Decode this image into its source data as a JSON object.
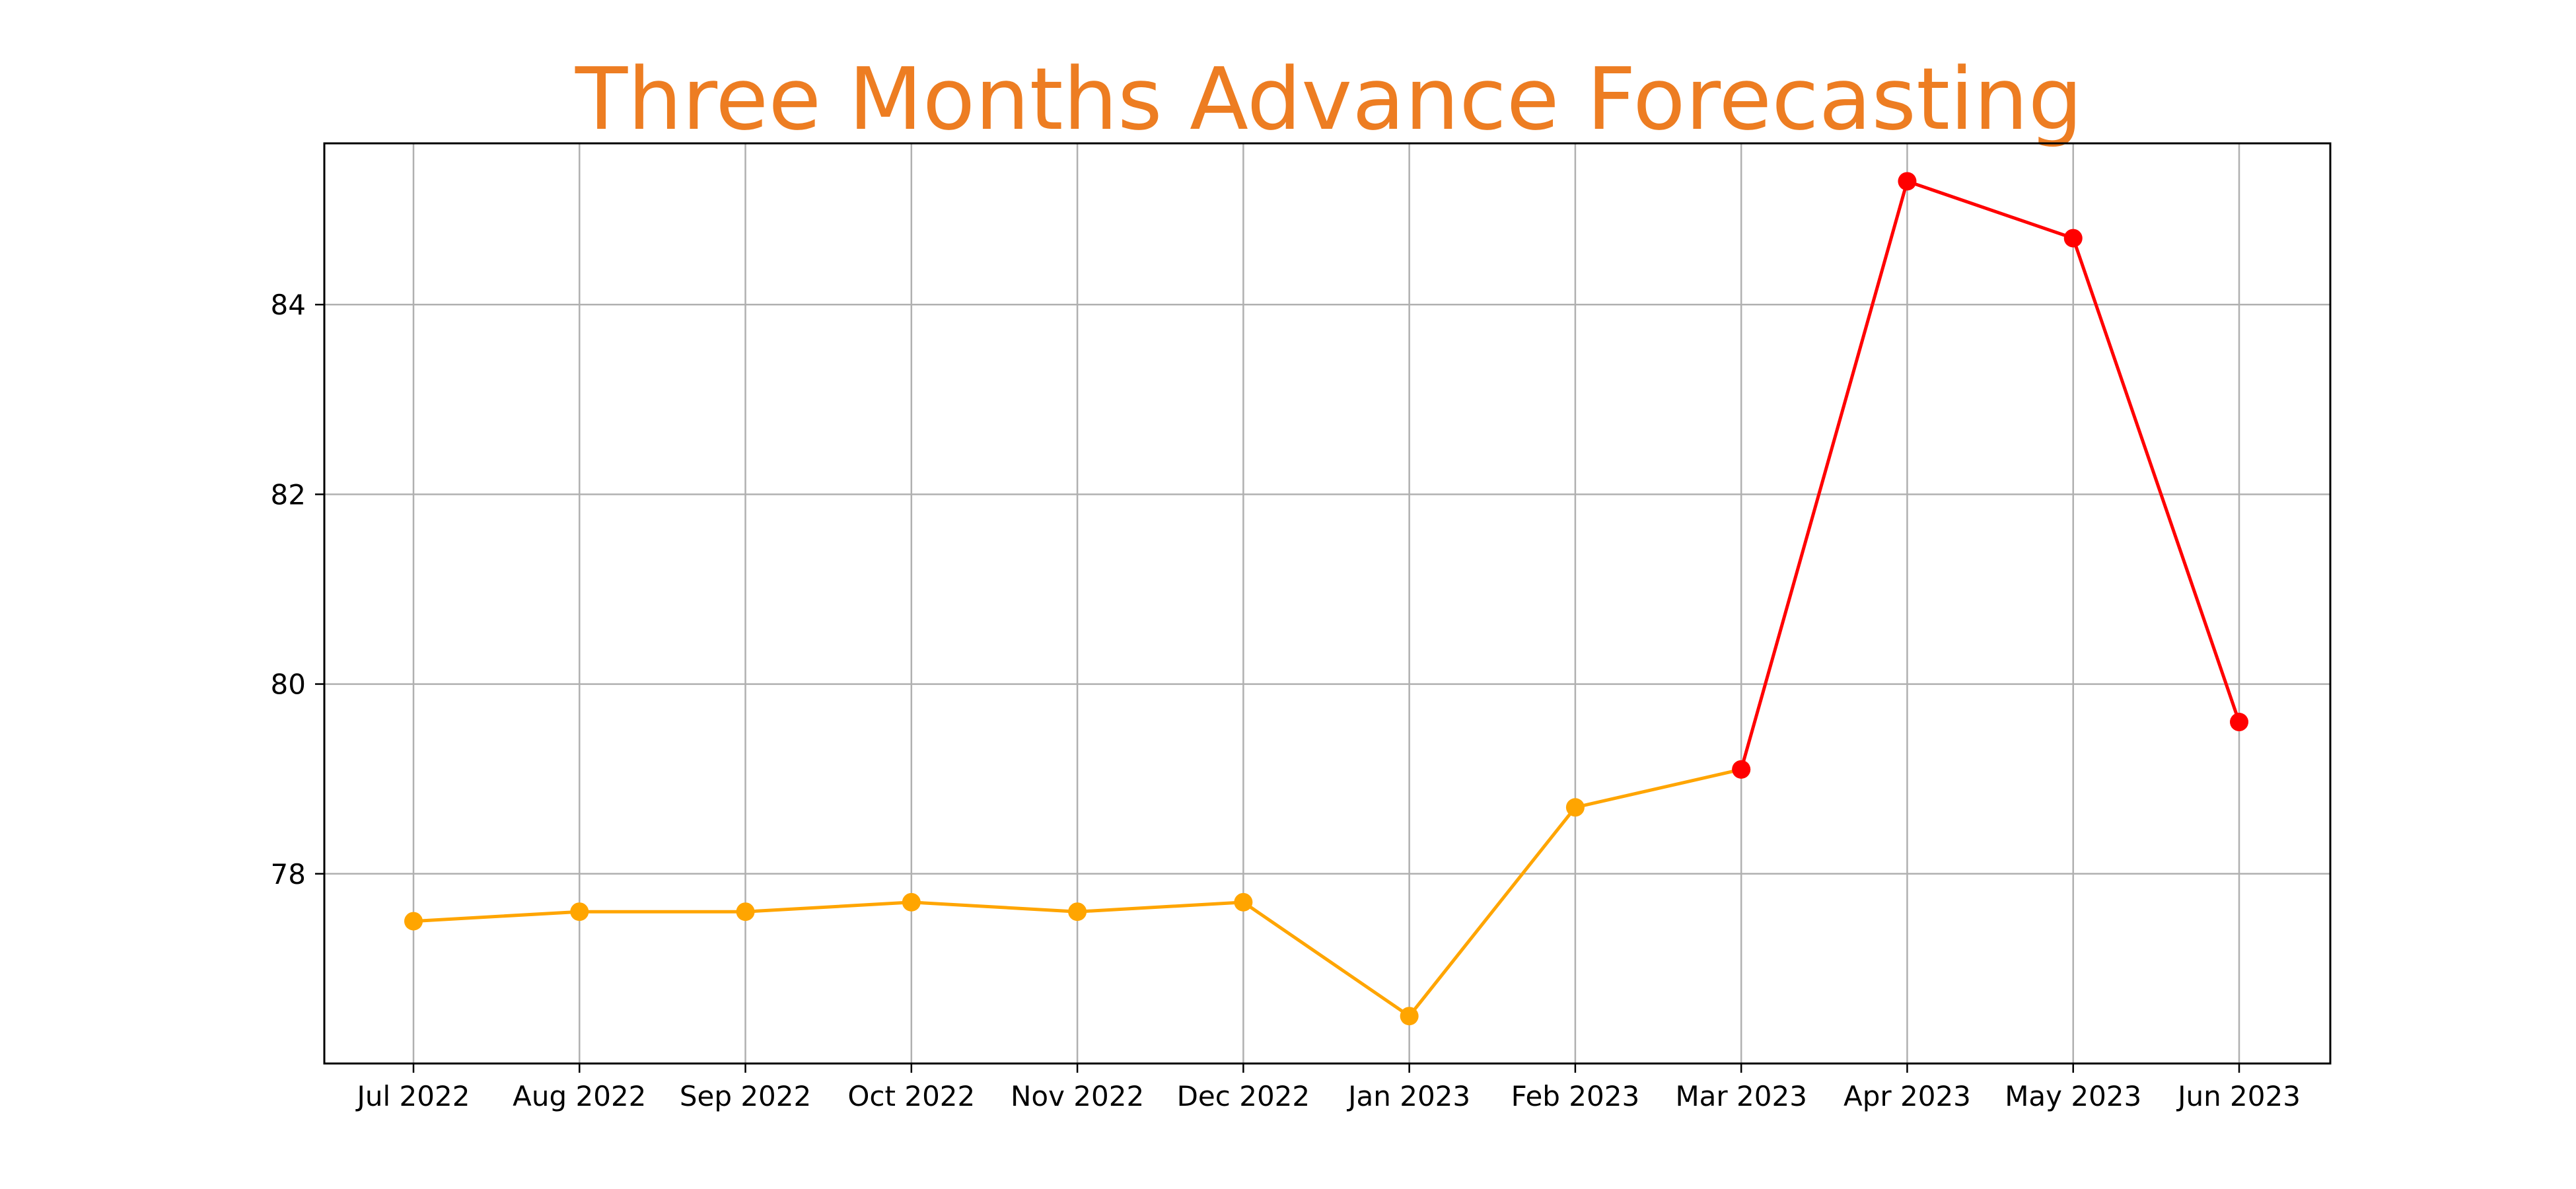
{
  "chart_data": {
    "type": "line",
    "title": "Three Months Advance Forecasting",
    "xlabel": "",
    "ylabel": "",
    "categories": [
      "Jul 2022",
      "Aug 2022",
      "Sep 2022",
      "Oct 2022",
      "Nov 2022",
      "Dec 2022",
      "Jan 2023",
      "Feb 2023",
      "Mar 2023",
      "Apr 2023",
      "May 2023",
      "Jun 2023"
    ],
    "y_ticks": [
      "78",
      "80",
      "82",
      "84"
    ],
    "ylim": [
      76.0,
      85.7
    ],
    "grid": true,
    "legend": "none",
    "series": [
      {
        "color": "#ffa500",
        "x": [
          "Jul 2022",
          "Aug 2022",
          "Sep 2022",
          "Oct 2022",
          "Nov 2022",
          "Dec 2022",
          "Jan 2023",
          "Feb 2023",
          "Mar 2023"
        ],
        "values": [
          77.5,
          77.6,
          77.6,
          77.7,
          77.6,
          77.7,
          76.5,
          78.7,
          79.1
        ]
      },
      {
        "color": "#ff0000",
        "x": [
          "Mar 2023",
          "Apr 2023",
          "May 2023",
          "Jun 2023"
        ],
        "values": [
          79.1,
          85.3,
          84.7,
          79.6
        ]
      }
    ]
  },
  "colors": {
    "title": "#ed7d22",
    "grid": "#b0b0b0",
    "axes": "#000000"
  }
}
